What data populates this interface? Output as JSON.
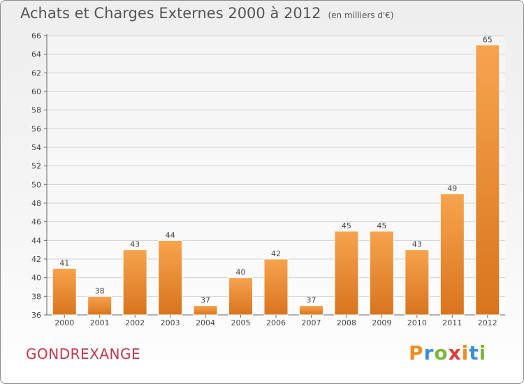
{
  "chart_data": {
    "type": "bar",
    "title": "Achats et Charges Externes 2000 à 2012",
    "subtitle": "(en milliers d'€)",
    "categories": [
      "2000",
      "2001",
      "2002",
      "2003",
      "2004",
      "2005",
      "2006",
      "2007",
      "2008",
      "2009",
      "2010",
      "2011",
      "2012"
    ],
    "values": [
      41,
      38,
      43,
      44,
      37,
      40,
      42,
      37,
      45,
      45,
      43,
      49,
      65
    ],
    "ylim": [
      36,
      66
    ],
    "yticks": [
      36,
      38,
      40,
      42,
      44,
      46,
      48,
      50,
      52,
      54,
      56,
      58,
      60,
      62,
      64,
      66
    ],
    "grid": true,
    "bar_color_top": "#f7a44f",
    "bar_color_bottom": "#d9741d"
  },
  "footer": {
    "commune": "GONDREXANGE",
    "logo": "Proxiti"
  },
  "colors": {
    "commune": "#c0394b",
    "logo_letters": [
      "#f28c1e",
      "#3b8fd8",
      "#7bb93a",
      "#e23b3b",
      "#f28c1e",
      "#3b8fd8",
      "#7bb93a"
    ]
  }
}
